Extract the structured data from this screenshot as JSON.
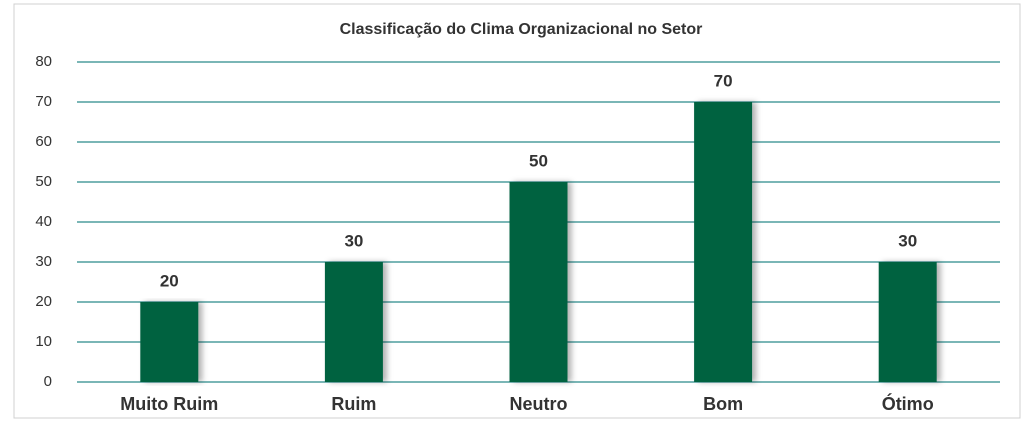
{
  "chart_data": {
    "type": "bar",
    "title": "Classificação do Clima Organizacional no Setor",
    "categories": [
      "Muito Ruim",
      "Ruim",
      "Neutro",
      "Bom",
      "Ótimo"
    ],
    "values": [
      20,
      30,
      50,
      70,
      30
    ],
    "color": "#006241",
    "ylim": [
      0,
      80
    ],
    "yticks": [
      0,
      10,
      20,
      30,
      40,
      50,
      60,
      70,
      80
    ],
    "grid": true
  }
}
